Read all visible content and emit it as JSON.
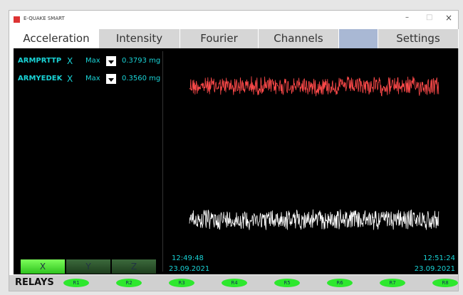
{
  "window": {
    "title": "E-QUAKE SMART",
    "controls": [
      "–",
      "□",
      "×"
    ]
  },
  "tabs": [
    "Acceleration",
    "Intensity",
    "Fourier",
    "Channels",
    "Settings"
  ],
  "channels": [
    {
      "name": "ARMPRTTP",
      "axis": "X",
      "mode": "Max",
      "value": "0.3793 mg"
    },
    {
      "name": "ARMYEDEK",
      "axis": "X",
      "mode": "Max",
      "value": "0.3560 mg"
    }
  ],
  "axis_buttons": [
    "X",
    "Y",
    "Z"
  ],
  "time_start": {
    "time": "12:49:48",
    "date": "23.09.2021"
  },
  "time_end": {
    "time": "12:51:24",
    "date": "23.09.2021"
  },
  "relays": {
    "label": "RELAYS",
    "items": [
      "R1",
      "R2",
      "R3",
      "R4",
      "R5",
      "R6",
      "R7",
      "R8"
    ]
  }
}
